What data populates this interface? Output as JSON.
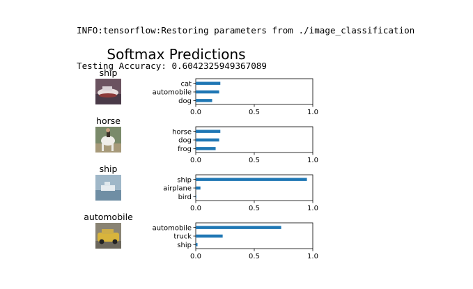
{
  "console": {
    "line1": "INFO:tensorflow:Restoring parameters from ./image_classification",
    "line2": "Testing Accuracy: 0.6042325949367089"
  },
  "figure": {
    "title": "Softmax Predictions"
  },
  "colors": {
    "bar": "#1f77b4",
    "axis": "#000000",
    "text": "#000000"
  },
  "chart_data": [
    {
      "type": "bar",
      "orientation": "horizontal",
      "image_label": "ship",
      "image_description": "thumbnail of a boat",
      "categories": [
        "cat",
        "automobile",
        "dog"
      ],
      "values": [
        0.21,
        0.2,
        0.14
      ],
      "xlim": [
        0,
        1.0
      ],
      "xticks": [
        "0.0",
        "0.5",
        "1.0"
      ],
      "grid": false
    },
    {
      "type": "bar",
      "orientation": "horizontal",
      "image_label": "horse",
      "image_description": "thumbnail of a horse with rider",
      "categories": [
        "horse",
        "dog",
        "frog"
      ],
      "values": [
        0.21,
        0.2,
        0.17
      ],
      "xlim": [
        0,
        1.0
      ],
      "xticks": [
        "0.0",
        "0.5",
        "1.0"
      ],
      "grid": false
    },
    {
      "type": "bar",
      "orientation": "horizontal",
      "image_label": "ship",
      "image_description": "thumbnail of a ship on water",
      "categories": [
        "ship",
        "airplane",
        "bird"
      ],
      "values": [
        0.95,
        0.04,
        0.005
      ],
      "xlim": [
        0,
        1.0
      ],
      "xticks": [
        "0.0",
        "0.5",
        "1.0"
      ],
      "grid": false
    },
    {
      "type": "bar",
      "orientation": "horizontal",
      "image_label": "automobile",
      "image_description": "thumbnail of a yellow car",
      "categories": [
        "automobile",
        "truck",
        "ship"
      ],
      "values": [
        0.73,
        0.23,
        0.015
      ],
      "xlim": [
        0,
        1.0
      ],
      "xticks": [
        "0.0",
        "0.5",
        "1.0"
      ],
      "grid": false
    }
  ]
}
